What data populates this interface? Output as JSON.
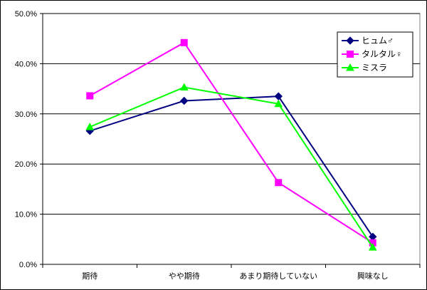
{
  "chart_data": {
    "type": "line",
    "categories": [
      "期待",
      "やや期待",
      "あまり期待していない",
      "興味なし"
    ],
    "ylim": [
      0,
      50
    ],
    "y_ticks": [
      "0.0%",
      "10.0%",
      "20.0%",
      "30.0%",
      "40.0%",
      "50.0%"
    ],
    "y_tick_values": [
      0,
      10,
      20,
      30,
      40,
      50
    ],
    "grid": true,
    "legend_position": "top-right",
    "series": [
      {
        "name": "ヒュム♂",
        "color": "#000080",
        "marker": "diamond",
        "values": [
          26.6,
          32.6,
          33.5,
          5.5
        ]
      },
      {
        "name": "タルタル♀",
        "color": "#ff00ff",
        "marker": "square",
        "values": [
          33.6,
          44.2,
          16.3,
          4.3
        ]
      },
      {
        "name": "ミスラ",
        "color": "#00ff00",
        "marker": "triangle",
        "values": [
          27.4,
          35.3,
          32.0,
          3.4
        ]
      }
    ]
  }
}
